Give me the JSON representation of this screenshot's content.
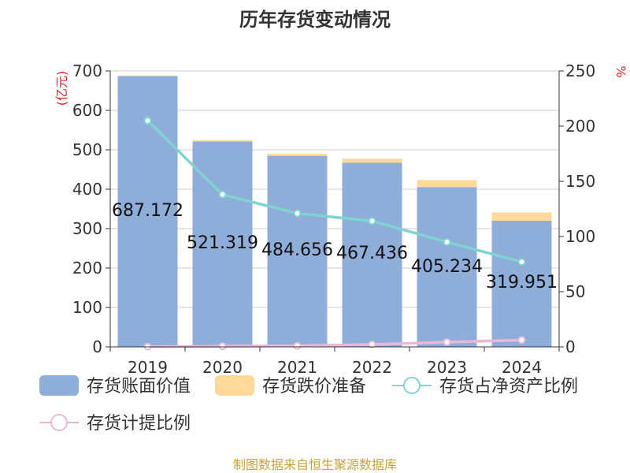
{
  "chart_data": {
    "type": "bar",
    "title": "历年存货变动情况",
    "categories": [
      "2019",
      "2020",
      "2021",
      "2022",
      "2023",
      "2024"
    ],
    "y_left": {
      "unit_label": "(亿元)",
      "lim": [
        0,
        700
      ],
      "ticks": [
        "0",
        "100",
        "200",
        "300",
        "400",
        "500",
        "600",
        "700"
      ]
    },
    "y_right": {
      "unit_label": "%",
      "lim": [
        0,
        250
      ],
      "ticks": [
        "0",
        "50",
        "100",
        "150",
        "200",
        "250"
      ]
    },
    "grid": true,
    "legend_position": "bottom",
    "series": [
      {
        "name": "存货账面价值",
        "type": "bar",
        "axis": "left",
        "color": "#8eaed9",
        "values": [
          687.172,
          521.319,
          484.656,
          467.436,
          405.234,
          319.951
        ],
        "labels": [
          "687.172",
          "521.319",
          "484.656",
          "467.436",
          "405.234",
          "319.951"
        ]
      },
      {
        "name": "存货跌价准备",
        "type": "bar-stacked",
        "axis": "left",
        "color": "#ffd99a",
        "values": [
          1.5,
          3,
          5,
          10,
          18,
          21
        ]
      },
      {
        "name": "存货占净资产比例",
        "type": "line",
        "axis": "right",
        "color": "#7fd3d1",
        "values": [
          205,
          138,
          121,
          114,
          95,
          77
        ]
      },
      {
        "name": "存货计提比例",
        "type": "line",
        "axis": "right",
        "color": "#e9b8d8",
        "values": [
          0.2,
          0.6,
          1.0,
          2.1,
          4.3,
          6.2
        ]
      }
    ]
  },
  "source_text": "制图数据来自恒生聚源数据库"
}
